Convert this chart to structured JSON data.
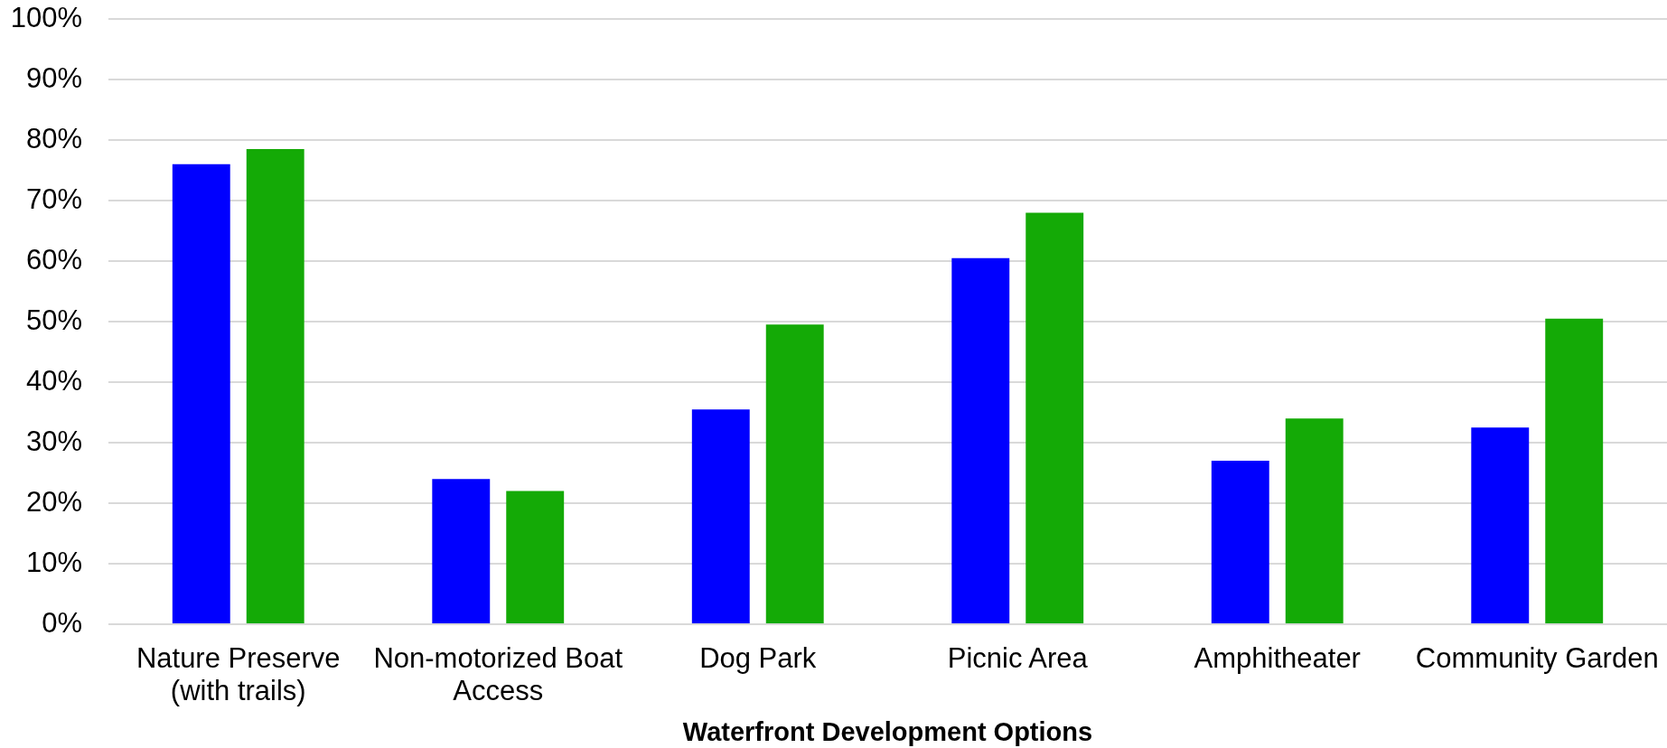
{
  "chart_data": {
    "type": "bar",
    "xlabel": "Waterfront Development Options",
    "categories": [
      "Nature Preserve (with trails)",
      "Non-motorized Boat Access",
      "Dog Park",
      "Picnic Area",
      "Amphitheater",
      "Community Garden"
    ],
    "series": [
      {
        "color": "#0000ff",
        "values": [
          76,
          24,
          35.5,
          60.5,
          27,
          32.5
        ]
      },
      {
        "color": "#14aa06",
        "values": [
          78.5,
          22,
          49.5,
          68,
          34,
          50.5
        ]
      }
    ],
    "ylim": [
      0,
      100
    ],
    "yticks": [
      {
        "value": 0,
        "label": "0%"
      },
      {
        "value": 10,
        "label": "10%"
      },
      {
        "value": 20,
        "label": "20%"
      },
      {
        "value": 30,
        "label": "30%"
      },
      {
        "value": 40,
        "label": "40%"
      },
      {
        "value": 50,
        "label": "50%"
      },
      {
        "value": 60,
        "label": "60%"
      },
      {
        "value": 70,
        "label": "70%"
      },
      {
        "value": 80,
        "label": "80%"
      },
      {
        "value": 90,
        "label": "90%"
      },
      {
        "value": 100,
        "label": "100%"
      }
    ],
    "grid": "y"
  }
}
